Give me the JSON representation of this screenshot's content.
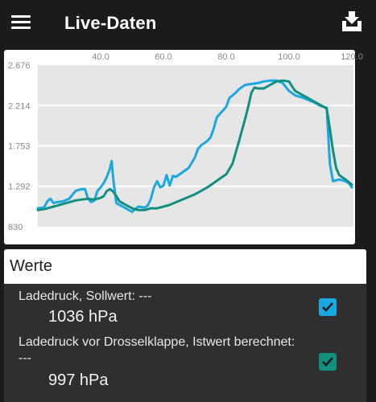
{
  "app": {
    "title": "Live-Daten"
  },
  "toolbar": {
    "menu_icon": "hamburger-menu-icon",
    "download_icon": "download-tray-icon"
  },
  "colors": {
    "series_1": "#1aa8e3",
    "series_2": "#128f7e",
    "plot_bg": "#e6e6e6",
    "check_1": "#1aa8e3",
    "check_2": "#128f7e"
  },
  "chart_data": {
    "type": "line",
    "x_ticks": [
      "40.0",
      "60.0",
      "80.0",
      "100.0",
      "120.0"
    ],
    "y_ticks": [
      "2.676",
      "2.214",
      "1.753",
      "1.292",
      "830"
    ],
    "xlim": [
      20,
      120.5
    ],
    "ylim": [
      830,
      2676
    ],
    "grid": true,
    "series": [
      {
        "color": "#1aa8e3",
        "points": [
          [
            20,
            1040
          ],
          [
            22,
            1050
          ],
          [
            23,
            1120
          ],
          [
            24,
            1150
          ],
          [
            25,
            1100
          ],
          [
            26,
            1110
          ],
          [
            28,
            1120
          ],
          [
            30,
            1150
          ],
          [
            32,
            1240
          ],
          [
            34,
            1260
          ],
          [
            35,
            1260
          ],
          [
            36,
            1150
          ],
          [
            37,
            1110
          ],
          [
            38,
            1130
          ],
          [
            39,
            1240
          ],
          [
            40,
            1280
          ],
          [
            41,
            1330
          ],
          [
            42,
            1400
          ],
          [
            43,
            1500
          ],
          [
            43.5,
            1580
          ],
          [
            44,
            1380
          ],
          [
            45,
            1100
          ],
          [
            46,
            1080
          ],
          [
            48,
            1040
          ],
          [
            50,
            1000
          ],
          [
            52,
            1060
          ],
          [
            54,
            1050
          ],
          [
            55,
            1070
          ],
          [
            56,
            1150
          ],
          [
            57,
            1280
          ],
          [
            58,
            1350
          ],
          [
            59,
            1280
          ],
          [
            60,
            1300
          ],
          [
            61,
            1420
          ],
          [
            62,
            1300
          ],
          [
            63,
            1410
          ],
          [
            64,
            1400
          ],
          [
            66,
            1450
          ],
          [
            68,
            1500
          ],
          [
            70,
            1620
          ],
          [
            71,
            1720
          ],
          [
            72,
            1760
          ],
          [
            74,
            1810
          ],
          [
            75,
            1850
          ],
          [
            76,
            1950
          ],
          [
            77,
            2080
          ],
          [
            78,
            2120
          ],
          [
            79,
            2160
          ],
          [
            80,
            2200
          ],
          [
            81,
            2300
          ],
          [
            82,
            2330
          ],
          [
            83,
            2360
          ],
          [
            84,
            2400
          ],
          [
            86,
            2450
          ],
          [
            88,
            2460
          ],
          [
            90,
            2470
          ],
          [
            92,
            2490
          ],
          [
            94,
            2500
          ],
          [
            96,
            2500
          ],
          [
            98,
            2470
          ],
          [
            100,
            2380
          ],
          [
            102,
            2330
          ],
          [
            104,
            2310
          ],
          [
            106,
            2280
          ],
          [
            108,
            2250
          ],
          [
            110,
            2210
          ],
          [
            112,
            2190
          ],
          [
            113,
            1550
          ],
          [
            114,
            1350
          ],
          [
            116,
            1370
          ],
          [
            118,
            1350
          ],
          [
            119,
            1330
          ],
          [
            120,
            1280
          ]
        ]
      },
      {
        "color": "#128f7e",
        "points": [
          [
            20,
            1020
          ],
          [
            22,
            1030
          ],
          [
            24,
            1050
          ],
          [
            26,
            1070
          ],
          [
            28,
            1090
          ],
          [
            30,
            1110
          ],
          [
            32,
            1130
          ],
          [
            34,
            1140
          ],
          [
            36,
            1150
          ],
          [
            38,
            1140
          ],
          [
            40,
            1160
          ],
          [
            41,
            1180
          ],
          [
            42,
            1240
          ],
          [
            43,
            1260
          ],
          [
            44,
            1230
          ],
          [
            45,
            1180
          ],
          [
            46,
            1120
          ],
          [
            48,
            1080
          ],
          [
            50,
            1040
          ],
          [
            52,
            1020
          ],
          [
            54,
            1020
          ],
          [
            56,
            1040
          ],
          [
            58,
            1040
          ],
          [
            60,
            1060
          ],
          [
            62,
            1080
          ],
          [
            64,
            1110
          ],
          [
            66,
            1140
          ],
          [
            68,
            1170
          ],
          [
            70,
            1200
          ],
          [
            72,
            1240
          ],
          [
            74,
            1280
          ],
          [
            76,
            1330
          ],
          [
            78,
            1380
          ],
          [
            80,
            1430
          ],
          [
            82,
            1550
          ],
          [
            84,
            1800
          ],
          [
            86,
            2060
          ],
          [
            87,
            2200
          ],
          [
            88,
            2360
          ],
          [
            89,
            2420
          ],
          [
            90,
            2410
          ],
          [
            92,
            2410
          ],
          [
            94,
            2450
          ],
          [
            96,
            2490
          ],
          [
            98,
            2500
          ],
          [
            100,
            2490
          ],
          [
            101,
            2430
          ],
          [
            102,
            2380
          ],
          [
            104,
            2340
          ],
          [
            106,
            2300
          ],
          [
            108,
            2260
          ],
          [
            110,
            2220
          ],
          [
            112,
            2180
          ],
          [
            113,
            1950
          ],
          [
            114,
            1700
          ],
          [
            115,
            1500
          ],
          [
            116,
            1420
          ],
          [
            118,
            1370
          ],
          [
            119,
            1340
          ],
          [
            120,
            1310
          ]
        ]
      }
    ]
  },
  "values_section": {
    "title": "Werte",
    "items": [
      {
        "label": "Ladedruck, Sollwert: ---",
        "value": "1036 hPa",
        "checked": true
      },
      {
        "label_line1": "Ladedruck vor Drosselklappe, Istwert berechnet:",
        "label_line2": "---",
        "value": "997 hPa",
        "checked": true
      }
    ]
  }
}
